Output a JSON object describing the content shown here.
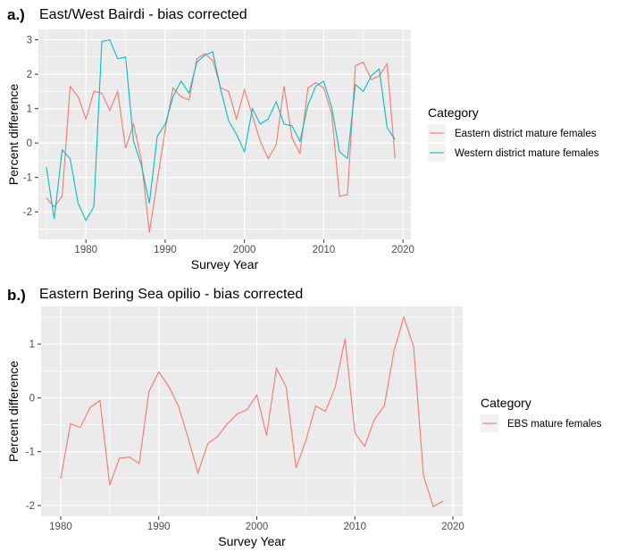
{
  "chart_data": [
    {
      "type": "line",
      "panel_label": "a.)",
      "title": "East/West Bairdi - bias corrected",
      "xlabel": "Survey Year",
      "ylabel": "Percent difference",
      "xlim": [
        1974,
        2021
      ],
      "ylim": [
        -2.8,
        3.3
      ],
      "xticks": [
        1980,
        1990,
        2000,
        2010,
        2020
      ],
      "yticks": [
        -2,
        -1,
        0,
        1,
        2,
        3
      ],
      "grid": true,
      "legend_title": "Category",
      "legend_position": "right",
      "series": [
        {
          "name": "Eastern district mature females",
          "color": "#F8766D",
          "x": [
            1975,
            1976,
            1977,
            1978,
            1979,
            1980,
            1981,
            1982,
            1983,
            1984,
            1985,
            1986,
            1987,
            1988,
            1989,
            1990,
            1991,
            1992,
            1993,
            1994,
            1995,
            1996,
            1997,
            1998,
            1999,
            2000,
            2001,
            2002,
            2003,
            2004,
            2005,
            2006,
            2007,
            2008,
            2009,
            2010,
            2011,
            2012,
            2013,
            2014,
            2015,
            2016,
            2017,
            2018,
            2019
          ],
          "y": [
            -1.6,
            -1.85,
            -1.55,
            1.65,
            1.35,
            0.7,
            1.5,
            1.45,
            0.95,
            1.5,
            -0.15,
            0.55,
            -0.5,
            -2.6,
            -1.1,
            0.4,
            1.6,
            1.35,
            1.25,
            2.45,
            2.6,
            2.4,
            1.6,
            1.5,
            0.7,
            1.55,
            0.8,
            0.05,
            -0.45,
            -0.05,
            1.65,
            0.15,
            -0.3,
            1.6,
            1.75,
            1.6,
            0.85,
            -1.55,
            -1.5,
            2.25,
            2.35,
            1.85,
            1.95,
            2.3,
            -0.45
          ]
        },
        {
          "name": "Western district mature females",
          "color": "#00BFC4",
          "x": [
            1975,
            1976,
            1977,
            1978,
            1979,
            1980,
            1981,
            1982,
            1983,
            1984,
            1985,
            1986,
            1987,
            1988,
            1989,
            1990,
            1991,
            1992,
            1993,
            1994,
            1995,
            1996,
            1997,
            1998,
            1999,
            2000,
            2001,
            2002,
            2003,
            2004,
            2005,
            2006,
            2007,
            2008,
            2009,
            2010,
            2011,
            2012,
            2013,
            2014,
            2015,
            2016,
            2017,
            2018,
            2019
          ],
          "y": [
            -0.7,
            -2.2,
            -0.2,
            -0.45,
            -1.75,
            -2.25,
            -1.85,
            2.95,
            3.0,
            2.45,
            2.5,
            0.05,
            -0.65,
            -1.75,
            0.2,
            0.55,
            1.35,
            1.8,
            1.45,
            2.35,
            2.55,
            2.65,
            1.55,
            0.65,
            0.25,
            -0.25,
            1.0,
            0.55,
            0.7,
            1.2,
            0.55,
            0.5,
            0.05,
            1.1,
            1.65,
            1.8,
            1.05,
            -0.25,
            -0.45,
            1.7,
            1.5,
            1.95,
            2.15,
            0.45,
            0.1
          ]
        }
      ]
    },
    {
      "type": "line",
      "panel_label": "b.)",
      "title": "Eastern Bering Sea opilio - bias corrected",
      "xlabel": "Survey Year",
      "ylabel": "Percent difference",
      "xlim": [
        1978,
        2021
      ],
      "ylim": [
        -2.2,
        1.7
      ],
      "xticks": [
        1980,
        1990,
        2000,
        2010,
        2020
      ],
      "yticks": [
        -2,
        -1,
        0,
        1
      ],
      "grid": true,
      "legend_title": "Category",
      "legend_position": "right",
      "series": [
        {
          "name": "EBS mature females",
          "color": "#F8766D",
          "x": [
            1980,
            1981,
            1982,
            1983,
            1984,
            1985,
            1986,
            1987,
            1988,
            1989,
            1990,
            1991,
            1992,
            1993,
            1994,
            1995,
            1996,
            1997,
            1998,
            1999,
            2000,
            2001,
            2002,
            2003,
            2004,
            2005,
            2006,
            2007,
            2008,
            2009,
            2010,
            2011,
            2012,
            2013,
            2014,
            2015,
            2016,
            2017,
            2018,
            2019
          ],
          "y": [
            -1.5,
            -0.48,
            -0.55,
            -0.18,
            -0.05,
            -1.62,
            -1.12,
            -1.1,
            -1.22,
            0.12,
            0.48,
            0.22,
            -0.15,
            -0.75,
            -1.4,
            -0.85,
            -0.72,
            -0.48,
            -0.3,
            -0.22,
            0.05,
            -0.7,
            0.55,
            0.2,
            -1.3,
            -0.8,
            -0.15,
            -0.25,
            0.2,
            1.1,
            -0.65,
            -0.9,
            -0.4,
            -0.15,
            0.88,
            1.5,
            0.95,
            -1.45,
            -2.02,
            -1.92
          ]
        }
      ]
    }
  ]
}
